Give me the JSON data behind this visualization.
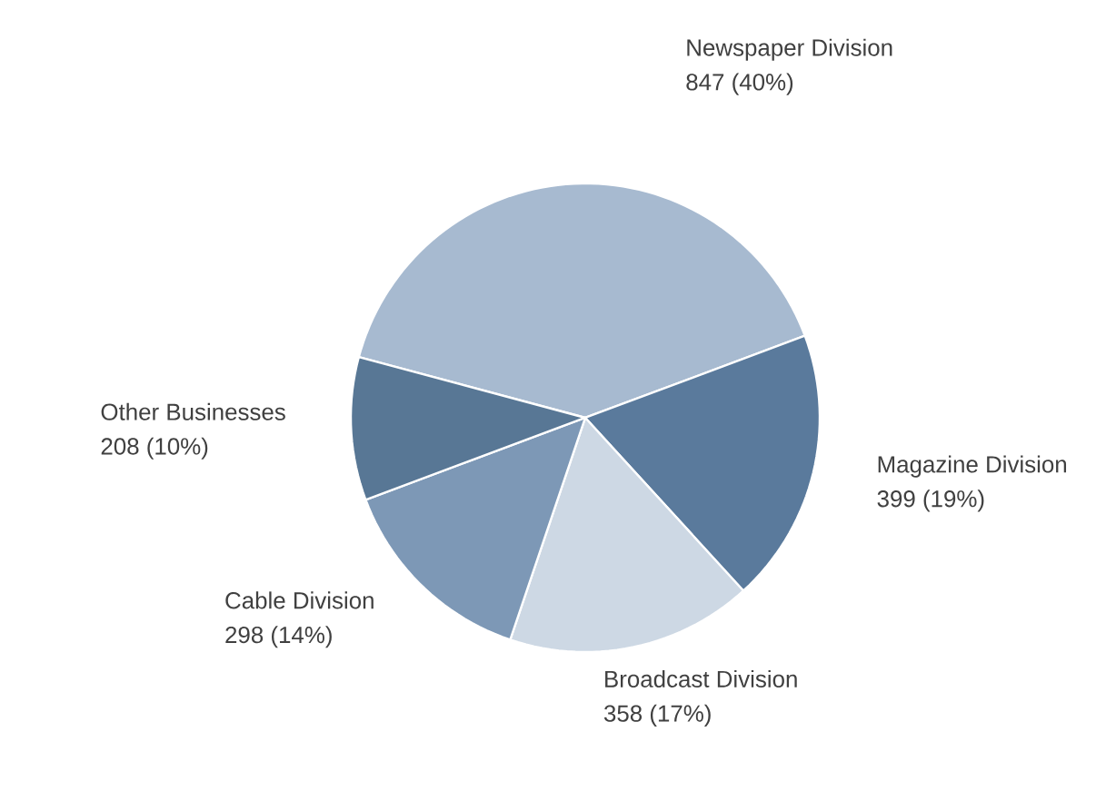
{
  "chart_data": {
    "type": "pie",
    "categories": [
      "Newspaper Division",
      "Magazine Division",
      "Broadcast Division",
      "Cable Division",
      "Other Businesses"
    ],
    "values": [
      847,
      399,
      358,
      298,
      208
    ],
    "value_labels": [
      "847 (40%)",
      "399 (19%)",
      "358 (17%)",
      "298 (14%)",
      "208 (10%)"
    ],
    "colors": [
      "#a7bad0",
      "#5a7a9c",
      "#cdd8e4",
      "#7d98b6",
      "#587795"
    ]
  }
}
